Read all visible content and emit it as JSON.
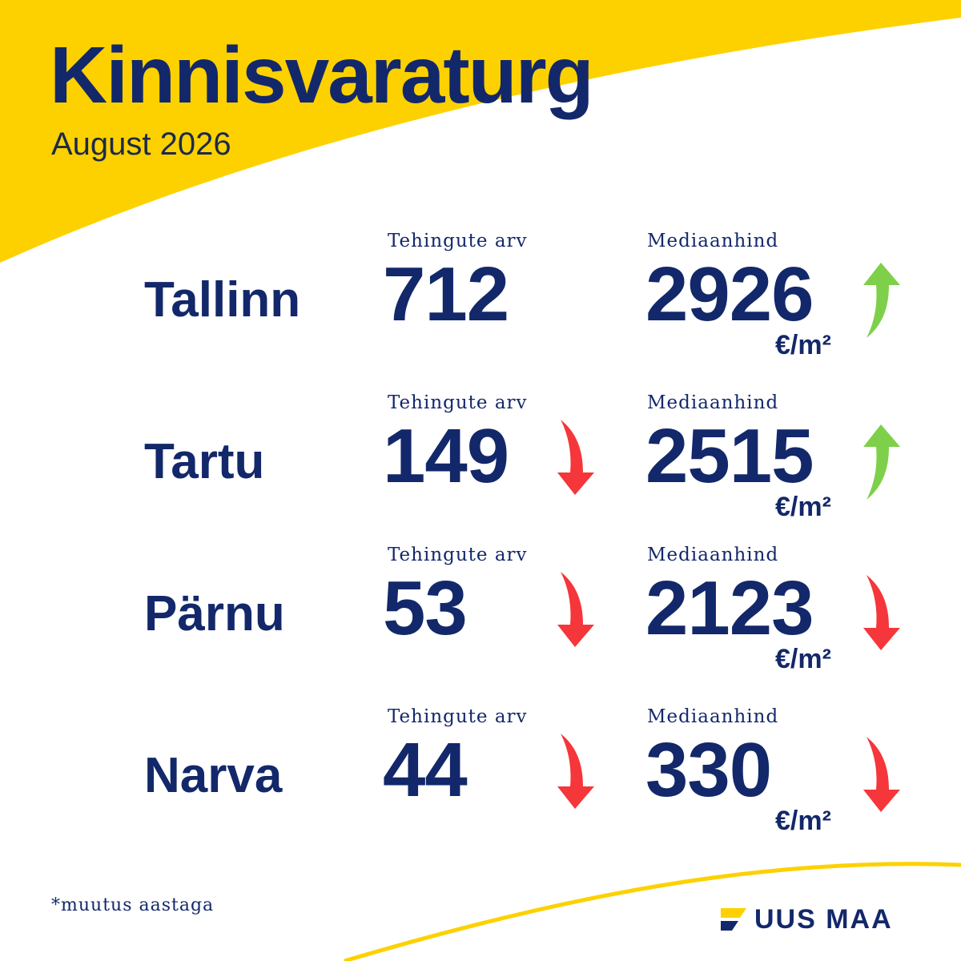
{
  "header": {
    "title": "Kinnisvaraturg",
    "subtitle": "August 2026"
  },
  "labels": {
    "deals": "Tehingute arv",
    "price": "Mediaanhind",
    "unit": "€/m²"
  },
  "cities": [
    {
      "name": "Tallinn",
      "deals": "712",
      "deals_trend": "none",
      "price": "2926",
      "price_trend": "up"
    },
    {
      "name": "Tartu",
      "deals": "149",
      "deals_trend": "down",
      "price": "2515",
      "price_trend": "up"
    },
    {
      "name": "Pärnu",
      "deals": "53",
      "deals_trend": "down",
      "price": "2123",
      "price_trend": "down"
    },
    {
      "name": "Narva",
      "deals": "44",
      "deals_trend": "down",
      "price": "330",
      "price_trend": "down"
    }
  ],
  "footnote": "*muutus aastaga",
  "brand": {
    "name": "UUS MAA"
  },
  "colors": {
    "yellow": "#fdd100",
    "navy": "#13286a",
    "up": "#7ed04a",
    "down": "#f5363a"
  },
  "icons": {
    "up": "arrow-up-icon",
    "down": "arrow-down-icon"
  }
}
